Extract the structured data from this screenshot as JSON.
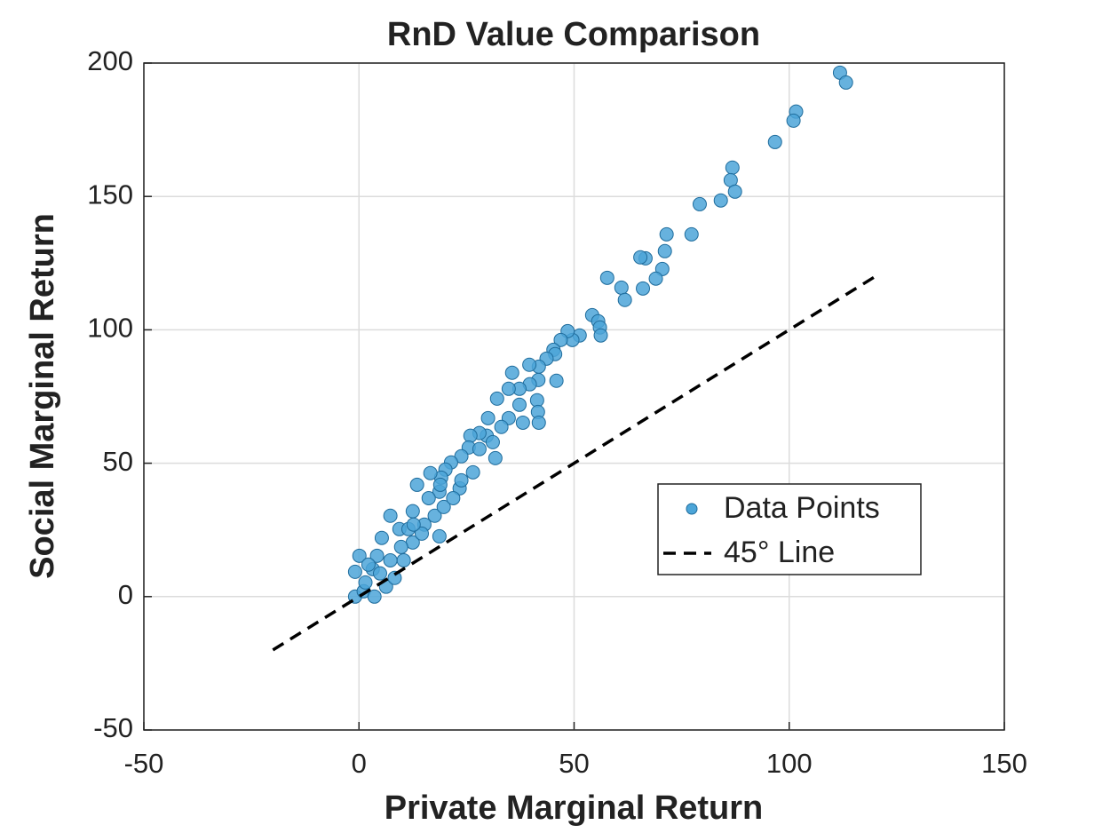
{
  "chart_data": {
    "type": "scatter",
    "title": "RnD Value Comparison",
    "x_label": "Private Marginal Return",
    "y_label": "Social Marginal Return",
    "xlim": [
      -50,
      150
    ],
    "xticks": [
      -50,
      0,
      50,
      100,
      150
    ],
    "ylim": [
      -50,
      200
    ],
    "yticks": [
      -50,
      0,
      50,
      100,
      150,
      200
    ],
    "grid": true,
    "legend": "east",
    "series": [
      {
        "name": "Data Points",
        "type": "scatter",
        "color": "#4ca5d8",
        "x": [
          111.8,
          113.2,
          101.6,
          101.0,
          96.7,
          86.8,
          86.4,
          87.4,
          84.1,
          79.2,
          77.3,
          71.5,
          71.1,
          70.5,
          69.0,
          66.6,
          65.4,
          66.0,
          57.7,
          61.0,
          61.8,
          54.2,
          55.6,
          56.0,
          56.2,
          51.3,
          49.6,
          48.5,
          46.9,
          45.2,
          45.6,
          45.9,
          43.6,
          41.8,
          35.6,
          41.7,
          39.7,
          37.3,
          34.8,
          32.1,
          41.4,
          41.6,
          41.8,
          38.1,
          34.8,
          30.0,
          29.7,
          28.0,
          25.9,
          25.5,
          23.8,
          21.4,
          20.1,
          19.1,
          16.6,
          13.5,
          26.5,
          31.7,
          31.1,
          23.4,
          18.7,
          17.6,
          18.7,
          15.2,
          12.5,
          9.4,
          7.3,
          5.3,
          4.2,
          3.2,
          0.1,
          -0.9,
          -0.9,
          1.1,
          3.6,
          6.3,
          8.3,
          10.4,
          12.5,
          14.6,
          11.5,
          19.7,
          21.9,
          23.8,
          1.5,
          2.2,
          4.9,
          7.3,
          9.8,
          12.7,
          16.2,
          18.9,
          28.0,
          33.1,
          37.3,
          39.6
        ],
        "values": [
          196.4,
          192.7,
          181.8,
          178.4,
          170.4,
          160.8,
          156.1,
          151.8,
          148.5,
          147.1,
          135.8,
          135.8,
          129.5,
          122.8,
          119.2,
          126.8,
          127.2,
          115.5,
          119.5,
          115.8,
          111.2,
          105.5,
          103.2,
          100.9,
          97.9,
          97.9,
          96.2,
          99.5,
          96.2,
          92.5,
          90.9,
          80.9,
          89.2,
          86.2,
          83.9,
          81.2,
          79.6,
          77.9,
          77.9,
          74.2,
          73.6,
          69.2,
          65.2,
          65.2,
          66.9,
          66.9,
          60.3,
          61.3,
          60.3,
          55.9,
          52.6,
          50.3,
          47.6,
          44.6,
          46.3,
          41.9,
          46.6,
          51.9,
          57.9,
          40.6,
          39.3,
          30.3,
          22.6,
          27.0,
          32.0,
          25.3,
          30.3,
          22.0,
          15.3,
          10.3,
          15.3,
          9.3,
          0,
          2.0,
          0,
          3.7,
          7.0,
          13.6,
          20.3,
          23.6,
          25.3,
          33.6,
          36.9,
          43.6,
          5.3,
          12.0,
          8.7,
          13.6,
          18.6,
          27.0,
          36.9,
          41.9,
          55.3,
          63.6,
          71.9,
          86.9
        ]
      },
      {
        "name": "45° Line",
        "type": "line",
        "color": "#000000",
        "dashed": true,
        "x": [
          -20,
          120
        ],
        "values": [
          -20,
          120
        ]
      }
    ]
  }
}
